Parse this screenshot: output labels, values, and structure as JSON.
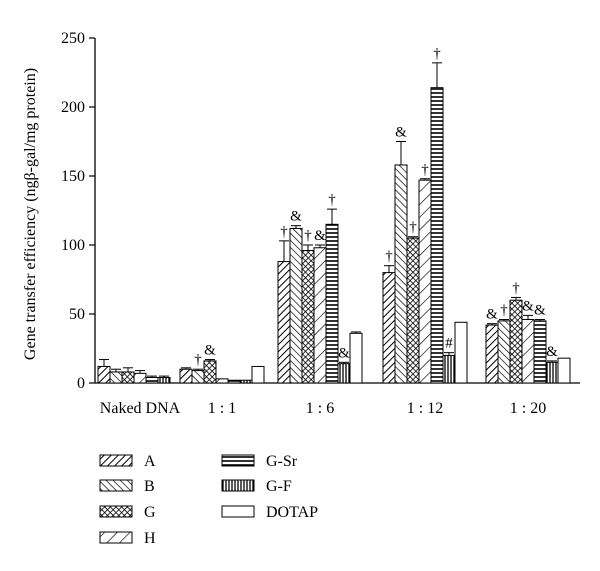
{
  "chart_data": {
    "type": "bar",
    "ylabel": "Gene transfer efficiency (ngβ-gal/mg protein)",
    "ylim": [
      0,
      250
    ],
    "yticks": [
      0,
      50,
      100,
      150,
      200,
      250
    ],
    "grid": false,
    "legend_position": "bottom",
    "categories": [
      "Naked DNA",
      "1 : 1",
      "1 : 6",
      "1 : 12",
      "1 : 20"
    ],
    "series": [
      {
        "name": "A",
        "pattern": "diag-up",
        "values": [
          12,
          10,
          88,
          80,
          42
        ],
        "errors": [
          5,
          1,
          15,
          5,
          1
        ],
        "annotations": [
          "",
          "",
          "†",
          "†",
          "&"
        ]
      },
      {
        "name": "B",
        "pattern": "diag-down",
        "values": [
          8,
          9,
          112,
          158,
          45
        ],
        "errors": [
          2,
          1,
          2,
          17,
          1
        ],
        "annotations": [
          "",
          "†",
          "&",
          "&",
          "†"
        ]
      },
      {
        "name": "G",
        "pattern": "crosshatch",
        "values": [
          8,
          16,
          96,
          105,
          60
        ],
        "errors": [
          3,
          1,
          4,
          1,
          2
        ],
        "annotations": [
          "",
          "&",
          "†",
          "†",
          "†"
        ]
      },
      {
        "name": "H",
        "pattern": "diag-up-wide",
        "values": [
          7,
          3,
          98,
          147,
          46
        ],
        "errors": [
          2,
          0,
          2,
          1,
          3
        ],
        "annotations": [
          "",
          "",
          "&",
          "†",
          "&"
        ]
      },
      {
        "name": "G-Sr",
        "pattern": "horizontal",
        "values": [
          4,
          2,
          115,
          214,
          45
        ],
        "errors": [
          1,
          0,
          11,
          18,
          1
        ],
        "annotations": [
          "",
          "",
          "†",
          "†",
          "&"
        ]
      },
      {
        "name": "G-F",
        "pattern": "vertical",
        "values": [
          4,
          2,
          14,
          20,
          15
        ],
        "errors": [
          1,
          0,
          1,
          2,
          1
        ],
        "annotations": [
          "",
          "",
          "&",
          "#",
          "&"
        ]
      },
      {
        "name": "DOTAP",
        "pattern": "none",
        "values": [
          0,
          12,
          36,
          44,
          18
        ],
        "errors": [
          0,
          0,
          1,
          0,
          0
        ],
        "annotations": [
          "",
          "",
          "",
          "",
          ""
        ]
      }
    ]
  }
}
